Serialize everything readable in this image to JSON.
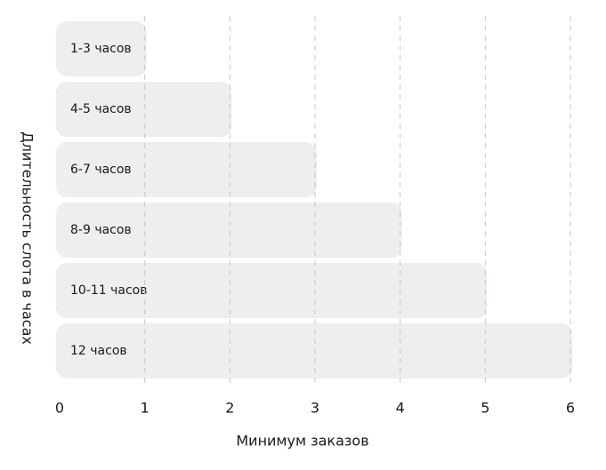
{
  "chart_data": {
    "type": "bar",
    "orientation": "horizontal",
    "categories": [
      "1-3 часов",
      "4-5 часов",
      "6-7 часов",
      "8-9 часов",
      "10-11 часов",
      "12 часов"
    ],
    "values": [
      1,
      2,
      3,
      4,
      5,
      6
    ],
    "color": "#efedee",
    "xlim": [
      0,
      6
    ],
    "xticks": [
      0,
      1,
      2,
      3,
      4,
      5,
      6
    ],
    "grid": true,
    "x_label": "Минимум заказов",
    "y_label": "Длительность слота в часах"
  }
}
